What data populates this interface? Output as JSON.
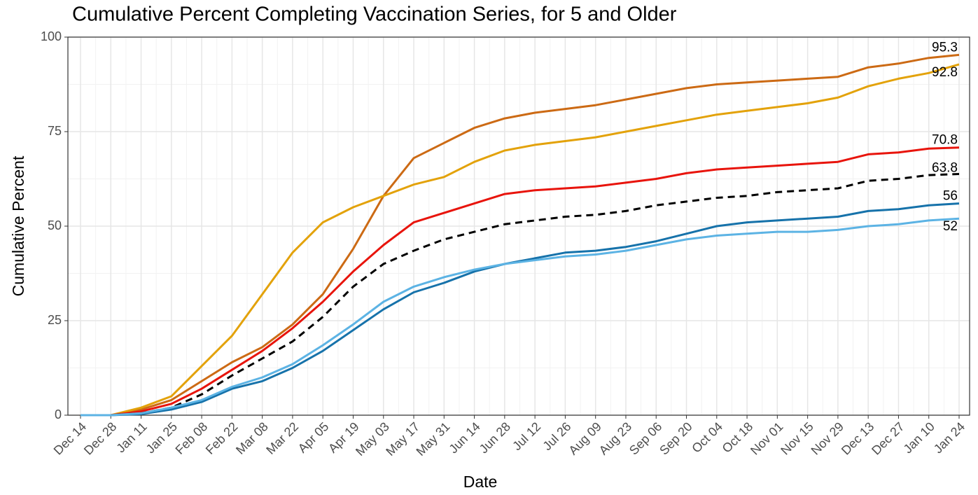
{
  "chart_data": {
    "type": "line",
    "title": "Cumulative Percent Completing Vaccination Series, for 5 and Older",
    "x_label": "Date",
    "y_label": "Cumulative Percent",
    "categories": [
      "Dec 14",
      "Dec 28",
      "Jan 11",
      "Jan 25",
      "Feb 08",
      "Feb 22",
      "Mar 08",
      "Mar 22",
      "Apr 05",
      "Apr 19",
      "May 03",
      "May 17",
      "May 31",
      "Jun 14",
      "Jun 28",
      "Jul 12",
      "Jul 26",
      "Aug 09",
      "Aug 23",
      "Sep 06",
      "Sep 20",
      "Oct 04",
      "Oct 18",
      "Nov 01",
      "Nov 15",
      "Nov 29",
      "Dec 13",
      "Dec 27",
      "Jan 10",
      "Jan 24"
    ],
    "ylim": [
      0,
      100
    ],
    "yticks": [
      0,
      25,
      50,
      75,
      100
    ],
    "grid": true,
    "series": [
      {
        "color": "#cc6a14",
        "values": [
          0,
          0,
          1.5,
          4,
          9,
          14,
          18,
          24,
          32,
          44,
          58,
          68,
          72,
          76,
          78.5,
          80,
          81,
          82,
          83.5,
          85,
          86.5,
          87.5,
          88,
          88.5,
          89,
          89.5,
          92,
          93,
          94.5,
          95.3
        ]
      },
      {
        "color": "#e3a20a",
        "values": [
          0,
          0,
          2,
          5,
          13,
          21,
          32,
          43,
          51,
          55,
          58,
          61,
          63,
          67,
          70,
          71.5,
          72.5,
          73.5,
          75,
          76.5,
          78,
          79.5,
          80.5,
          81.5,
          82.5,
          84,
          87,
          89,
          90.5,
          92.8
        ]
      },
      {
        "color": "#e8140c",
        "values": [
          0,
          0,
          1,
          3,
          7,
          12,
          17,
          23,
          30,
          38,
          45,
          51,
          53.5,
          56,
          58.5,
          59.5,
          60,
          60.5,
          61.5,
          62.5,
          64,
          65,
          65.5,
          66,
          66.5,
          67,
          69,
          69.5,
          70.5,
          70.8
        ]
      },
      {
        "color": "#000000",
        "dashed": true,
        "values": [
          0,
          0,
          0.5,
          2,
          5.5,
          10.5,
          15,
          19.5,
          26,
          34,
          40,
          43.5,
          46.5,
          48.5,
          50.5,
          51.5,
          52.5,
          53,
          54,
          55.5,
          56.5,
          57.5,
          58,
          59,
          59.5,
          60,
          62,
          62.5,
          63.5,
          63.8
        ]
      },
      {
        "color": "#1672aa",
        "values": [
          0,
          0,
          0.3,
          1.5,
          3.5,
          7,
          9,
          12.5,
          17,
          22.5,
          28,
          32.5,
          35,
          38,
          40,
          41.5,
          43,
          43.5,
          44.5,
          46,
          48,
          50,
          51,
          51.5,
          52,
          52.5,
          54,
          54.5,
          55.5,
          56
        ]
      },
      {
        "color": "#5cb3e4",
        "values": [
          0,
          0,
          0.5,
          2,
          4,
          7.5,
          10,
          13.5,
          18.5,
          24,
          30,
          34,
          36.5,
          38.5,
          40,
          41,
          42,
          42.5,
          43.5,
          45,
          46.5,
          47.5,
          48,
          48.5,
          48.5,
          49,
          50,
          50.5,
          51.5,
          52
        ]
      }
    ]
  }
}
